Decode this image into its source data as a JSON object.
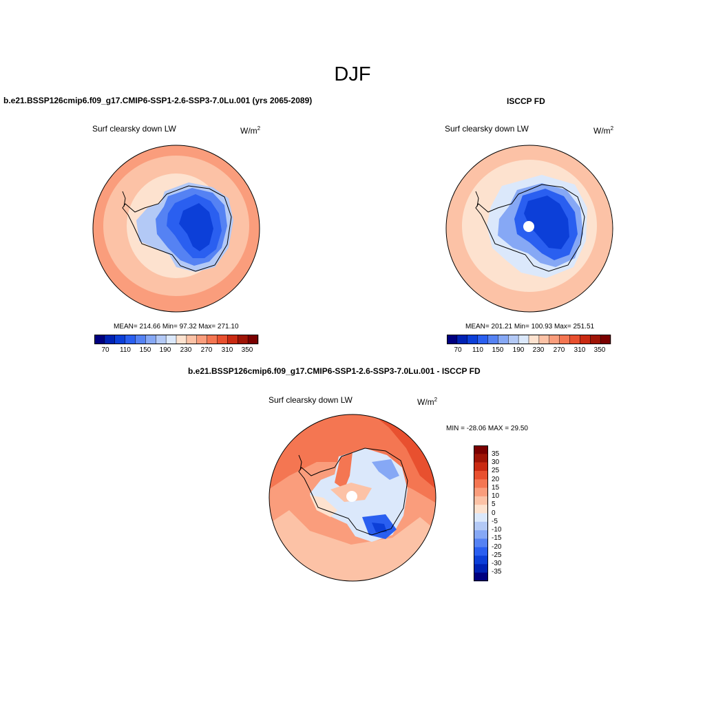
{
  "title": "DJF",
  "colors": {
    "palette": [
      "#00007f",
      "#0022b4",
      "#0c3fd8",
      "#2a5ff0",
      "#5582f3",
      "#86a8f5",
      "#b3c9f6",
      "#dbe8fb",
      "#fde2cf",
      "#fcc2a6",
      "#fa9d7c",
      "#f47652",
      "#e8502f",
      "#c92a12",
      "#9e1406",
      "#7a0000"
    ],
    "map_outline": "#000000"
  },
  "panels": [
    {
      "header": "b.e21.BSSP126cmip6.f09_g17.CMIP6-SSP1-2.6-SSP3-7.0Lu.001 (yrs 2065-2089)",
      "variable": "Surf clearsky down LW",
      "units": "W/m",
      "units_sup": "2",
      "stats": "MEAN= 214.66  Min=  97.32  Max= 271.10",
      "colorbar_labels": [
        "70",
        "110",
        "150",
        "190",
        "230",
        "270",
        "310",
        "350"
      ]
    },
    {
      "header": "ISCCP FD",
      "variable": "Surf clearsky down LW",
      "units": "W/m",
      "units_sup": "2",
      "stats": "MEAN= 201.21  Min= 100.93  Max= 251.51",
      "colorbar_labels": [
        "70",
        "110",
        "150",
        "190",
        "230",
        "270",
        "310",
        "350"
      ]
    },
    {
      "header": "b.e21.BSSP126cmip6.f09_g17.CMIP6-SSP1-2.6-SSP3-7.0Lu.001 - ISCCP FD",
      "variable": "Surf clearsky down LW",
      "units": "W/m",
      "units_sup": "2",
      "stats": "MIN = -28.06 MAX =  29.50",
      "colorbar_labels": [
        "35",
        "30",
        "25",
        "20",
        "15",
        "10",
        "5",
        "0",
        "-5",
        "-10",
        "-15",
        "-20",
        "-25",
        "-30",
        "-35"
      ]
    }
  ]
}
